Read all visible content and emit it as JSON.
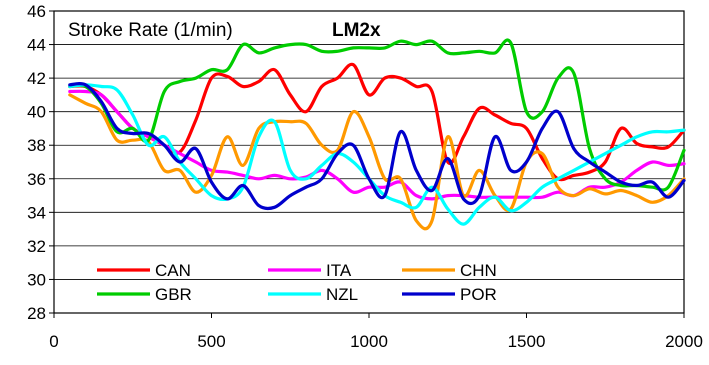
{
  "chart_data": {
    "type": "line",
    "title": "Stroke Rate (1/min)",
    "subtitle": "LM2x",
    "xlabel": "",
    "ylabel": "",
    "xlim": [
      0,
      2000
    ],
    "ylim": [
      28,
      46
    ],
    "x_ticks": [
      "0",
      "500",
      "1000",
      "1500",
      "2000"
    ],
    "y_ticks": [
      "28",
      "30",
      "32",
      "34",
      "36",
      "38",
      "40",
      "42",
      "44",
      "46"
    ],
    "grid": "horizontal",
    "legend_position": "bottom-left",
    "x": [
      50,
      100,
      150,
      200,
      250,
      300,
      350,
      400,
      450,
      500,
      550,
      600,
      650,
      700,
      750,
      800,
      850,
      900,
      950,
      1000,
      1050,
      1100,
      1150,
      1200,
      1250,
      1300,
      1350,
      1400,
      1450,
      1500,
      1550,
      1600,
      1650,
      1700,
      1750,
      1800,
      1850,
      1900,
      1950,
      2000
    ],
    "series": [
      {
        "name": "CAN",
        "color": "#ff0000",
        "values": [
          41.5,
          41.5,
          41.0,
          40.0,
          39.0,
          38.5,
          38.0,
          37.6,
          39.5,
          42.0,
          42.1,
          41.5,
          41.8,
          42.5,
          41.0,
          40.0,
          41.5,
          42.0,
          42.8,
          41.0,
          42.0,
          42.0,
          41.5,
          41.2,
          37.0,
          38.5,
          40.2,
          39.8,
          39.3,
          39.0,
          37.2,
          36.0,
          36.2,
          36.4,
          37.0,
          39.0,
          38.1,
          37.9,
          37.9,
          38.9
        ]
      },
      {
        "name": "ITA",
        "color": "#ff00ff",
        "values": [
          41.2,
          41.2,
          41.0,
          40.0,
          39.0,
          38.5,
          38.0,
          37.5,
          37.0,
          36.5,
          36.4,
          36.2,
          36.0,
          36.2,
          36.0,
          36.1,
          36.5,
          36.0,
          35.2,
          35.5,
          35.5,
          35.8,
          35.0,
          34.8,
          35.0,
          35.0,
          34.9,
          34.9,
          34.9,
          34.9,
          34.9,
          35.2,
          35.0,
          35.5,
          35.5,
          35.8,
          36.5,
          37.0,
          36.8,
          36.9
        ]
      },
      {
        "name": "CHN",
        "color": "#ff9900",
        "values": [
          41.0,
          40.5,
          40.0,
          38.3,
          38.3,
          38.2,
          36.5,
          36.5,
          35.2,
          36.2,
          38.5,
          36.8,
          39.0,
          39.4,
          39.4,
          39.3,
          38.0,
          37.7,
          40.0,
          38.5,
          36.0,
          36.0,
          33.5,
          33.5,
          38.5,
          35.0,
          36.5,
          35.0,
          34.2,
          37.0,
          37.5,
          35.5,
          35.0,
          35.4,
          35.1,
          35.3,
          35.0,
          34.6,
          35.0,
          36.0
        ]
      },
      {
        "name": "GBR",
        "color": "#00cc00",
        "values": [
          41.5,
          41.5,
          40.5,
          38.8,
          39.0,
          38.3,
          41.2,
          41.8,
          42.0,
          42.5,
          42.5,
          44.0,
          43.5,
          43.8,
          44.0,
          44.0,
          43.6,
          43.6,
          43.8,
          43.8,
          43.8,
          44.2,
          44.0,
          44.2,
          43.5,
          43.5,
          43.6,
          43.5,
          44.1,
          40.0,
          40.0,
          42.0,
          42.3,
          37.8,
          36.0,
          35.6,
          35.6,
          35.5,
          35.5,
          37.7
        ]
      },
      {
        "name": "NZL",
        "color": "#00ffff",
        "values": [
          41.5,
          41.6,
          41.5,
          41.3,
          39.8,
          38.0,
          38.5,
          37.0,
          36.0,
          35.0,
          34.8,
          35.5,
          38.5,
          39.4,
          36.5,
          36.0,
          36.8,
          37.5,
          37.0,
          36.0,
          35.0,
          34.6,
          34.3,
          35.5,
          34.2,
          33.3,
          34.3,
          34.9,
          34.1,
          34.6,
          35.5,
          36.0,
          36.5,
          37.0,
          37.5,
          38.0,
          38.5,
          38.8,
          38.8,
          38.9
        ]
      },
      {
        "name": "POR",
        "color": "#0000cc",
        "values": [
          41.6,
          41.6,
          40.6,
          39.0,
          38.7,
          38.7,
          38.0,
          37.0,
          37.8,
          35.8,
          34.8,
          35.6,
          34.4,
          34.3,
          35.0,
          35.5,
          36.0,
          37.5,
          38.0,
          36.0,
          35.0,
          38.8,
          36.5,
          35.3,
          37.2,
          34.8,
          35.0,
          38.5,
          36.5,
          37.0,
          39.0,
          40.0,
          37.8,
          37.0,
          36.4,
          35.8,
          35.6,
          35.8,
          34.9,
          35.9
        ]
      }
    ]
  }
}
